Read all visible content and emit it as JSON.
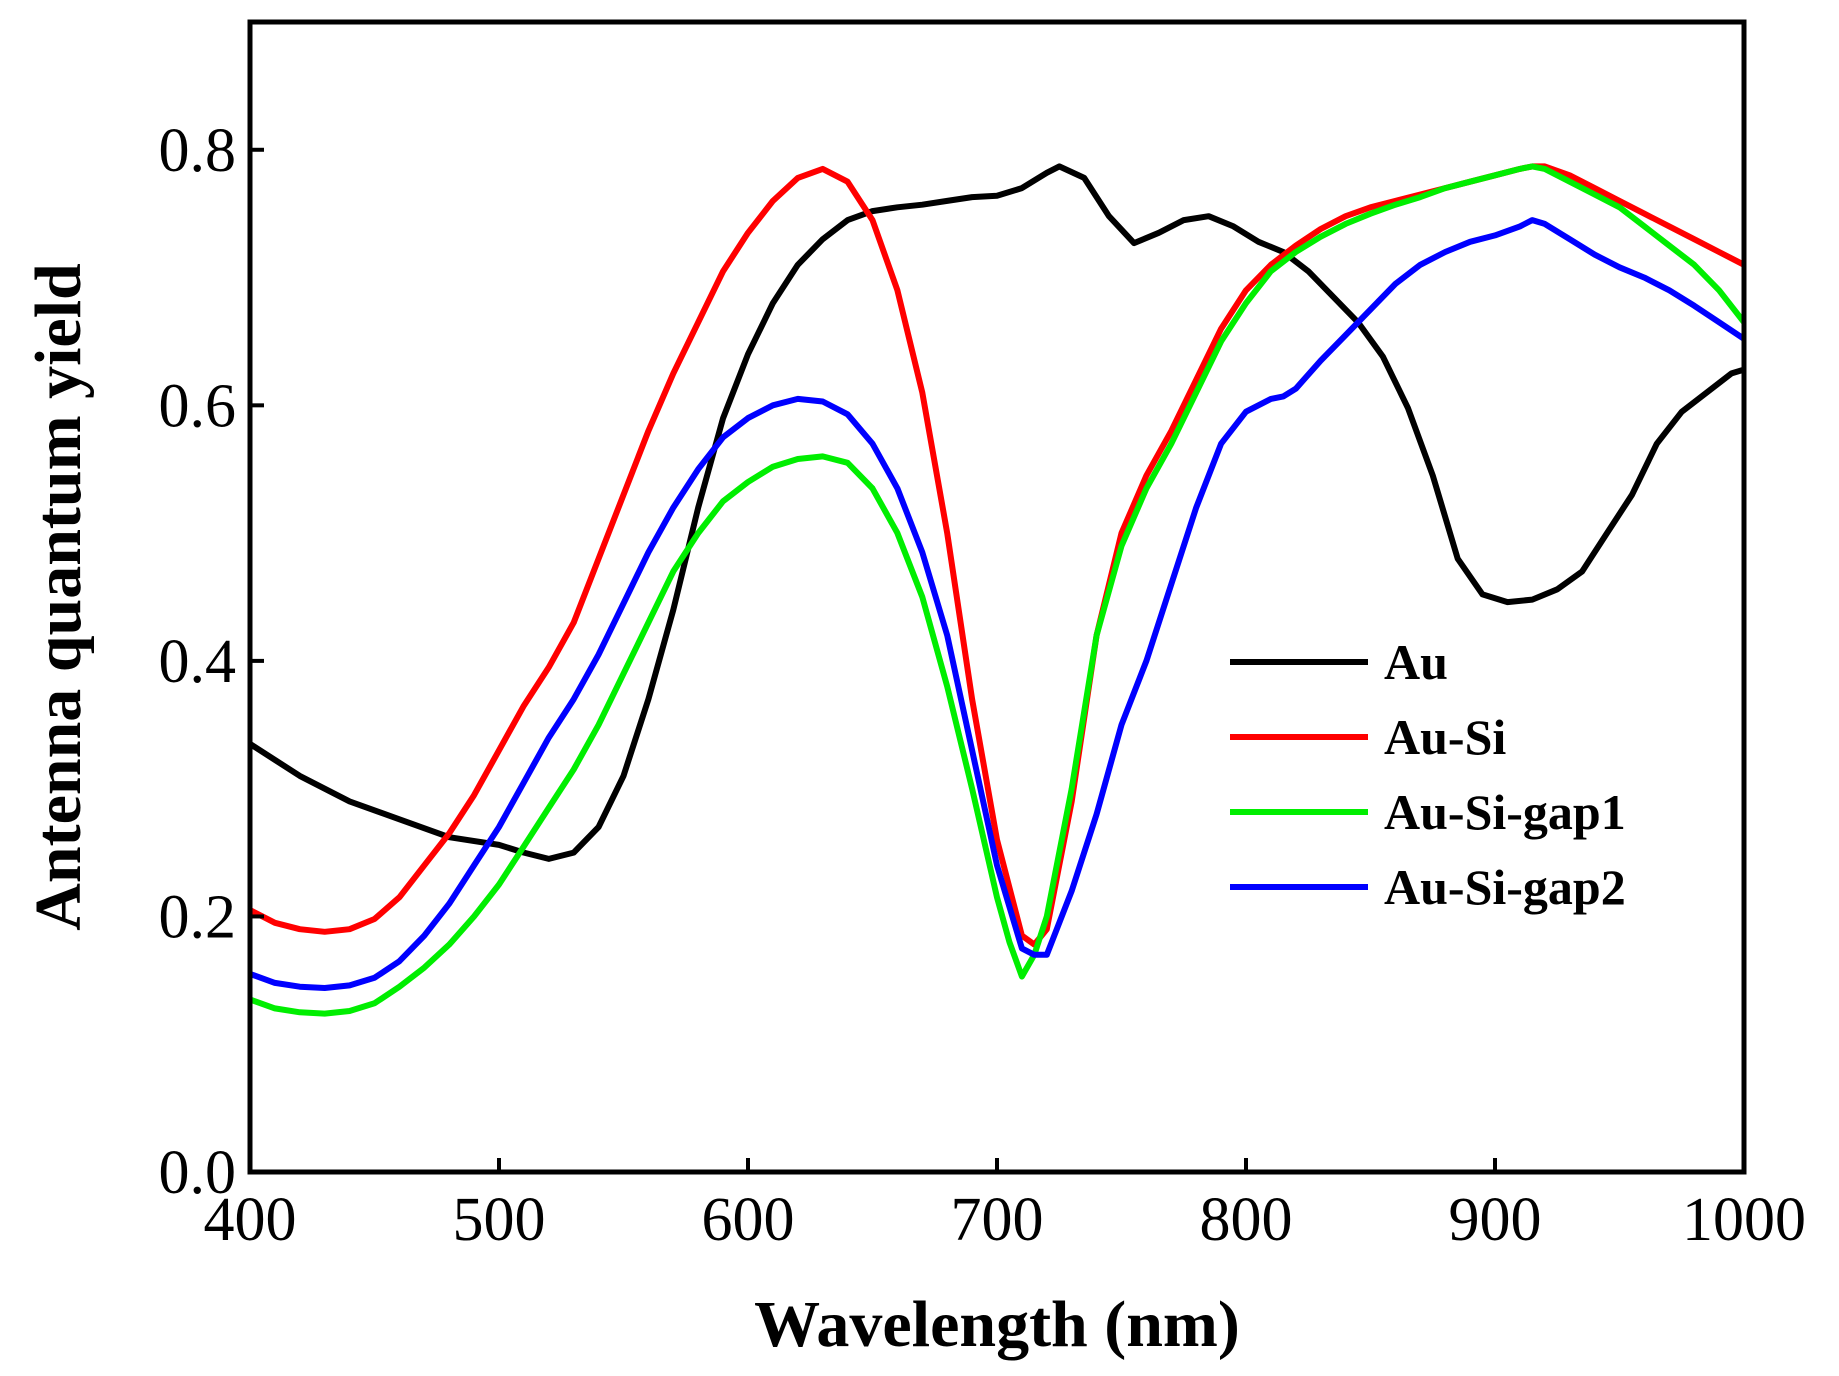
{
  "chart_data": {
    "type": "line",
    "title": "",
    "xlabel": "Wavelength (nm)",
    "ylabel": "Antenna quantum yield",
    "xlim": [
      400,
      1000
    ],
    "ylim": [
      0,
      0.9
    ],
    "xticks": [
      400,
      500,
      600,
      700,
      800,
      900,
      1000
    ],
    "xtick_labels": [
      "400",
      "500",
      "600",
      "700",
      "800",
      "900",
      "1000"
    ],
    "yticks": [
      0.0,
      0.2,
      0.4,
      0.6,
      0.8
    ],
    "ytick_labels": [
      "0.0",
      "0.2",
      "0.4",
      "0.6",
      "0.8"
    ],
    "grid": false,
    "legend_position": "lower-right",
    "series": [
      {
        "name": "Au",
        "color": "#000000",
        "x": [
          400,
          420,
          440,
          460,
          480,
          500,
          510,
          520,
          530,
          540,
          550,
          560,
          570,
          580,
          590,
          600,
          610,
          620,
          630,
          640,
          650,
          660,
          670,
          680,
          690,
          700,
          710,
          720,
          725,
          735,
          745,
          755,
          765,
          775,
          785,
          795,
          805,
          815,
          825,
          835,
          845,
          855,
          865,
          875,
          885,
          895,
          905,
          915,
          925,
          935,
          945,
          955,
          965,
          975,
          985,
          995,
          1000
        ],
        "y": [
          0.335,
          0.31,
          0.29,
          0.276,
          0.262,
          0.256,
          0.25,
          0.245,
          0.25,
          0.27,
          0.31,
          0.37,
          0.44,
          0.52,
          0.59,
          0.64,
          0.68,
          0.71,
          0.73,
          0.745,
          0.752,
          0.755,
          0.757,
          0.76,
          0.763,
          0.764,
          0.77,
          0.782,
          0.787,
          0.778,
          0.748,
          0.727,
          0.735,
          0.745,
          0.748,
          0.74,
          0.728,
          0.72,
          0.705,
          0.685,
          0.665,
          0.638,
          0.598,
          0.545,
          0.48,
          0.452,
          0.446,
          0.448,
          0.456,
          0.47,
          0.5,
          0.53,
          0.57,
          0.595,
          0.61,
          0.625,
          0.628
        ]
      },
      {
        "name": "Au-Si",
        "color": "#ff0000",
        "x": [
          400,
          410,
          420,
          430,
          440,
          450,
          460,
          470,
          480,
          490,
          500,
          510,
          520,
          530,
          540,
          550,
          560,
          570,
          580,
          590,
          600,
          610,
          620,
          630,
          640,
          650,
          660,
          670,
          680,
          690,
          700,
          710,
          715,
          720,
          730,
          740,
          750,
          760,
          770,
          780,
          790,
          800,
          810,
          820,
          830,
          840,
          850,
          860,
          870,
          880,
          890,
          900,
          910,
          915,
          920,
          930,
          940,
          950,
          960,
          970,
          980,
          990,
          1000
        ],
        "y": [
          0.205,
          0.195,
          0.19,
          0.188,
          0.19,
          0.198,
          0.215,
          0.24,
          0.265,
          0.295,
          0.33,
          0.365,
          0.395,
          0.43,
          0.48,
          0.53,
          0.58,
          0.625,
          0.665,
          0.705,
          0.735,
          0.76,
          0.778,
          0.785,
          0.775,
          0.745,
          0.69,
          0.61,
          0.5,
          0.37,
          0.26,
          0.185,
          0.178,
          0.19,
          0.29,
          0.42,
          0.5,
          0.545,
          0.58,
          0.62,
          0.66,
          0.69,
          0.71,
          0.725,
          0.738,
          0.748,
          0.755,
          0.76,
          0.765,
          0.77,
          0.775,
          0.78,
          0.785,
          0.787,
          0.787,
          0.78,
          0.77,
          0.76,
          0.75,
          0.74,
          0.73,
          0.72,
          0.71
        ]
      },
      {
        "name": "Au-Si-gap1",
        "color": "#00ee00",
        "x": [
          400,
          410,
          420,
          430,
          440,
          450,
          460,
          470,
          480,
          490,
          500,
          510,
          520,
          530,
          540,
          550,
          560,
          570,
          580,
          590,
          600,
          610,
          620,
          630,
          640,
          650,
          660,
          670,
          680,
          690,
          700,
          705,
          710,
          715,
          720,
          730,
          740,
          750,
          760,
          770,
          780,
          790,
          800,
          810,
          820,
          830,
          840,
          850,
          860,
          870,
          880,
          890,
          900,
          910,
          915,
          920,
          930,
          940,
          950,
          960,
          970,
          980,
          990,
          1000
        ],
        "y": [
          0.135,
          0.128,
          0.125,
          0.124,
          0.126,
          0.132,
          0.145,
          0.16,
          0.178,
          0.2,
          0.225,
          0.255,
          0.285,
          0.315,
          0.35,
          0.39,
          0.43,
          0.47,
          0.5,
          0.525,
          0.54,
          0.552,
          0.558,
          0.56,
          0.555,
          0.535,
          0.5,
          0.45,
          0.38,
          0.3,
          0.215,
          0.18,
          0.153,
          0.17,
          0.2,
          0.3,
          0.42,
          0.49,
          0.535,
          0.57,
          0.61,
          0.65,
          0.68,
          0.705,
          0.72,
          0.732,
          0.742,
          0.75,
          0.757,
          0.763,
          0.77,
          0.775,
          0.78,
          0.785,
          0.787,
          0.785,
          0.775,
          0.765,
          0.755,
          0.74,
          0.725,
          0.71,
          0.69,
          0.665
        ]
      },
      {
        "name": "Au-Si-gap2",
        "color": "#0000ff",
        "x": [
          400,
          410,
          420,
          430,
          440,
          450,
          460,
          470,
          480,
          490,
          500,
          510,
          520,
          530,
          540,
          550,
          560,
          570,
          580,
          590,
          600,
          610,
          620,
          630,
          640,
          650,
          660,
          670,
          680,
          690,
          700,
          710,
          715,
          720,
          730,
          740,
          750,
          760,
          770,
          780,
          790,
          800,
          810,
          815,
          820,
          830,
          840,
          850,
          860,
          870,
          880,
          890,
          900,
          910,
          915,
          920,
          930,
          940,
          950,
          960,
          970,
          980,
          990,
          1000
        ],
        "y": [
          0.155,
          0.148,
          0.145,
          0.144,
          0.146,
          0.152,
          0.165,
          0.185,
          0.21,
          0.24,
          0.27,
          0.305,
          0.34,
          0.37,
          0.405,
          0.445,
          0.485,
          0.52,
          0.55,
          0.575,
          0.59,
          0.6,
          0.605,
          0.603,
          0.593,
          0.57,
          0.535,
          0.485,
          0.42,
          0.33,
          0.24,
          0.175,
          0.17,
          0.17,
          0.22,
          0.28,
          0.35,
          0.4,
          0.46,
          0.52,
          0.57,
          0.595,
          0.605,
          0.607,
          0.613,
          0.635,
          0.655,
          0.675,
          0.695,
          0.71,
          0.72,
          0.728,
          0.733,
          0.74,
          0.745,
          0.742,
          0.73,
          0.718,
          0.708,
          0.7,
          0.69,
          0.678,
          0.665,
          0.652
        ]
      }
    ]
  }
}
